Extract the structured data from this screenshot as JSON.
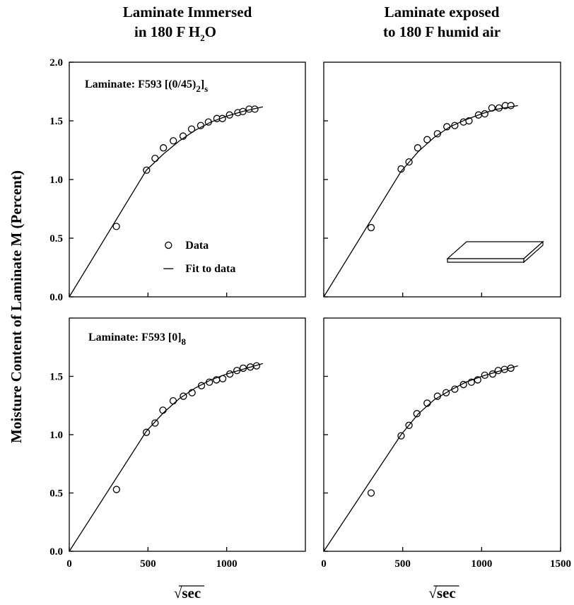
{
  "titles": [
    {
      "line1": "Laminate Immersed",
      "line2": [
        "in 180 F H",
        "2",
        "O"
      ]
    },
    {
      "line1": "Laminate exposed",
      "line2": [
        "to 180 F humid air"
      ]
    }
  ],
  "y_label": "Moisture Content of Laminate M  (Percent)",
  "chart_data": [
    {
      "type": "scatter",
      "annotation": [
        "Laminate: F593   [(0/45)",
        "2",
        "]",
        "s"
      ],
      "xlim": [
        0,
        1500
      ],
      "ylim": [
        0,
        2
      ],
      "xticks": [
        0,
        500,
        1000
      ],
      "show_xtick_labels": false,
      "yticks": [
        {
          "value": 0,
          "label": "0.0"
        },
        {
          "value": 0.5,
          "label": "0.5"
        },
        {
          "value": 1,
          "label": "1.0"
        },
        {
          "value": 1.5,
          "label": "1.5"
        },
        {
          "value": 2,
          "label": "2.0"
        }
      ],
      "show_ytick_labels": true,
      "legend": "lower right",
      "series": [
        {
          "name": "Data",
          "mode": "markers",
          "color": "#000000",
          "x": [
            299,
            491,
            545,
            598,
            661,
            723,
            777,
            835,
            884,
            938,
            973,
            1018,
            1071,
            1103,
            1143,
            1179
          ],
          "values": [
            0.6,
            1.08,
            1.18,
            1.27,
            1.33,
            1.37,
            1.43,
            1.46,
            1.49,
            1.52,
            1.52,
            1.55,
            1.57,
            1.58,
            1.6,
            1.6
          ]
        },
        {
          "name": "Fit to data",
          "mode": "line",
          "color": "#000000",
          "x": [
            0,
            490,
            600,
            700,
            800,
            900,
            1000,
            1100,
            1230
          ],
          "values": [
            0,
            1.08,
            1.22,
            1.33,
            1.42,
            1.49,
            1.54,
            1.58,
            1.62
          ]
        }
      ]
    },
    {
      "type": "scatter",
      "xlim": [
        0,
        1500
      ],
      "ylim": [
        0,
        2
      ],
      "xticks": [
        0,
        500,
        1000
      ],
      "show_xtick_labels": false,
      "yticks": [
        0,
        0.5,
        1,
        1.5
      ],
      "show_ytick_labels": false,
      "series": [
        {
          "mode": "markers",
          "color": "#000000",
          "x": [
            300,
            490,
            540,
            595,
            655,
            720,
            780,
            830,
            885,
            920,
            980,
            1020,
            1065,
            1110,
            1150,
            1185
          ],
          "values": [
            0.59,
            1.09,
            1.15,
            1.27,
            1.34,
            1.39,
            1.45,
            1.46,
            1.49,
            1.5,
            1.55,
            1.56,
            1.61,
            1.61,
            1.63,
            1.63
          ]
        },
        {
          "mode": "line",
          "color": "#000000",
          "x": [
            0,
            490,
            600,
            700,
            800,
            900,
            1000,
            1100,
            1230
          ],
          "values": [
            0,
            1.07,
            1.24,
            1.36,
            1.45,
            1.51,
            1.56,
            1.6,
            1.63
          ]
        }
      ]
    },
    {
      "type": "scatter",
      "annotation": [
        "Laminate: F593   [0]",
        "8"
      ],
      "xlim": [
        0,
        1500
      ],
      "ylim": [
        0,
        2
      ],
      "xticks": [
        0,
        500,
        1000
      ],
      "show_xtick_labels": true,
      "xlabel": "√sec",
      "yticks": [
        {
          "value": 0,
          "label": "0.0"
        },
        {
          "value": 0.5,
          "label": "0.5"
        },
        {
          "value": 1,
          "label": "1.0"
        },
        {
          "value": 1.5,
          "label": "1.5"
        }
      ],
      "show_ytick_labels": true,
      "series": [
        {
          "mode": "markers",
          "color": "#000000",
          "x": [
            300,
            490,
            545,
            595,
            660,
            725,
            780,
            840,
            890,
            935,
            975,
            1020,
            1065,
            1105,
            1150,
            1190
          ],
          "values": [
            0.53,
            1.02,
            1.1,
            1.21,
            1.29,
            1.33,
            1.36,
            1.42,
            1.45,
            1.47,
            1.48,
            1.52,
            1.55,
            1.57,
            1.58,
            1.59
          ]
        },
        {
          "mode": "line",
          "color": "#000000",
          "x": [
            0,
            490,
            600,
            700,
            800,
            900,
            1000,
            1100,
            1230
          ],
          "values": [
            0,
            1.03,
            1.19,
            1.31,
            1.4,
            1.47,
            1.52,
            1.56,
            1.61
          ]
        }
      ]
    },
    {
      "type": "scatter",
      "xlim": [
        0,
        1500
      ],
      "ylim": [
        0,
        2
      ],
      "xticks": [
        0,
        500,
        1000,
        1500
      ],
      "show_xtick_labels": true,
      "xlabel": "√sec",
      "yticks": [
        0,
        0.5,
        1,
        1.5
      ],
      "show_ytick_labels": false,
      "series": [
        {
          "mode": "markers",
          "color": "#000000",
          "x": [
            300,
            490,
            540,
            590,
            655,
            720,
            775,
            830,
            885,
            935,
            975,
            1020,
            1070,
            1105,
            1145,
            1185
          ],
          "values": [
            0.5,
            0.99,
            1.08,
            1.18,
            1.27,
            1.33,
            1.36,
            1.39,
            1.43,
            1.45,
            1.47,
            1.51,
            1.52,
            1.55,
            1.56,
            1.57
          ]
        },
        {
          "mode": "line",
          "color": "#000000",
          "x": [
            0,
            490,
            600,
            700,
            800,
            900,
            1000,
            1100,
            1230
          ],
          "values": [
            0,
            1.0,
            1.18,
            1.3,
            1.38,
            1.45,
            1.5,
            1.54,
            1.59
          ]
        }
      ]
    }
  ]
}
